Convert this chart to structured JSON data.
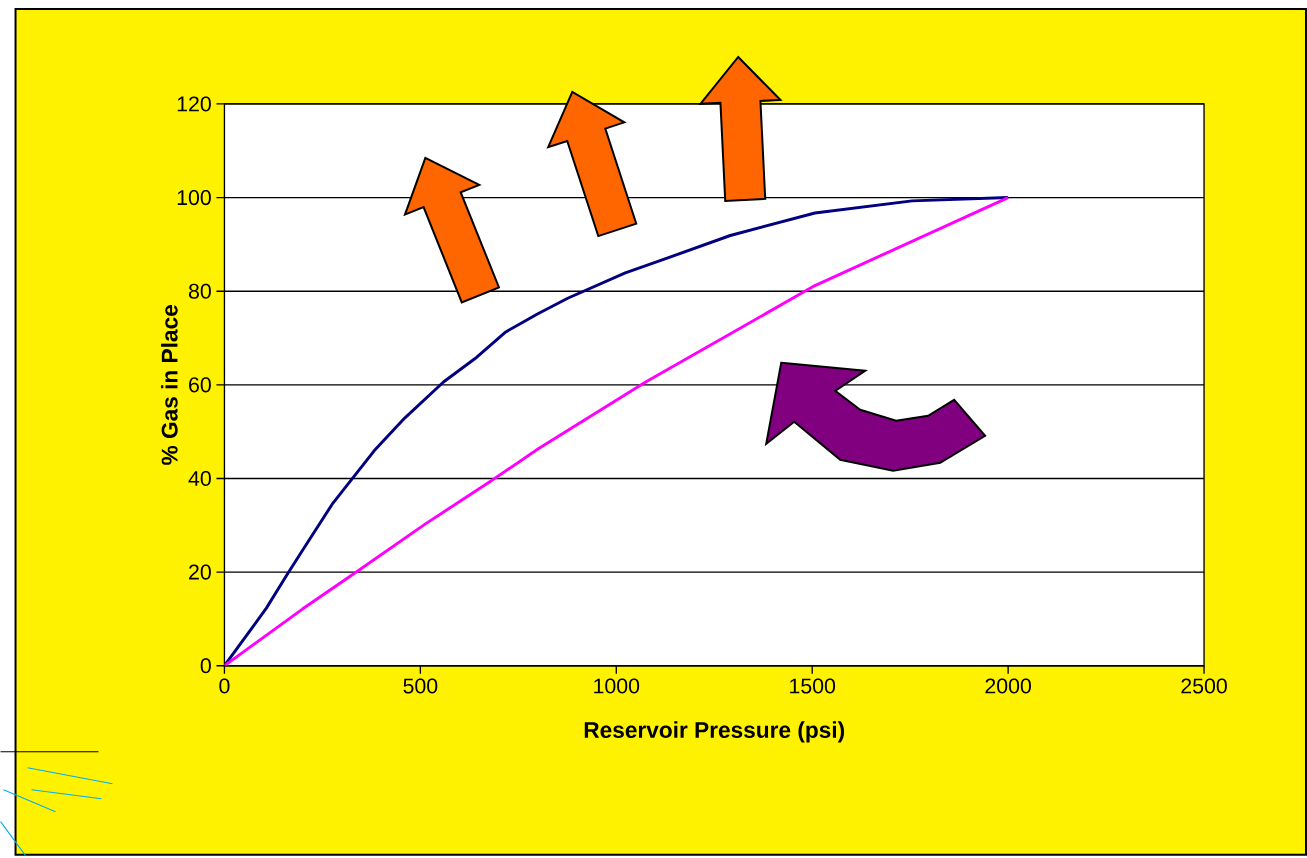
{
  "chart_data": {
    "type": "line",
    "xlabel": "Reservoir Pressure (psi)",
    "ylabel": "% Gas in Place",
    "series": [
      {
        "color": "#000080",
        "x": [
          0,
          107,
          160,
          199,
          275,
          382,
          460,
          559,
          644,
          718,
          800,
          876,
          1023,
          1101,
          1291,
          1507,
          1755,
          2000
        ],
        "values": [
          0,
          12.3,
          19.5,
          24.6,
          34.5,
          45.9,
          52.9,
          60.6,
          65.9,
          71.3,
          75.2,
          78.5,
          83.9,
          86.2,
          91.9,
          96.7,
          99.3,
          100
        ]
      },
      {
        "color": "#ff00ff",
        "x": [
          0,
          199,
          343,
          513,
          683,
          800,
          1075,
          1507,
          2000
        ],
        "values": [
          0,
          12.1,
          20.4,
          30.3,
          39.6,
          46.3,
          60.6,
          81.2,
          100
        ]
      }
    ],
    "xlim": [
      0,
      2500
    ],
    "ylim": [
      0,
      120
    ],
    "xticks": [
      0,
      500,
      1000,
      1500,
      2000,
      2500
    ],
    "yticks": [
      0,
      20,
      40,
      60,
      80,
      100,
      120
    ],
    "grid": "y",
    "marker": "none",
    "line_style": "solid"
  }
}
